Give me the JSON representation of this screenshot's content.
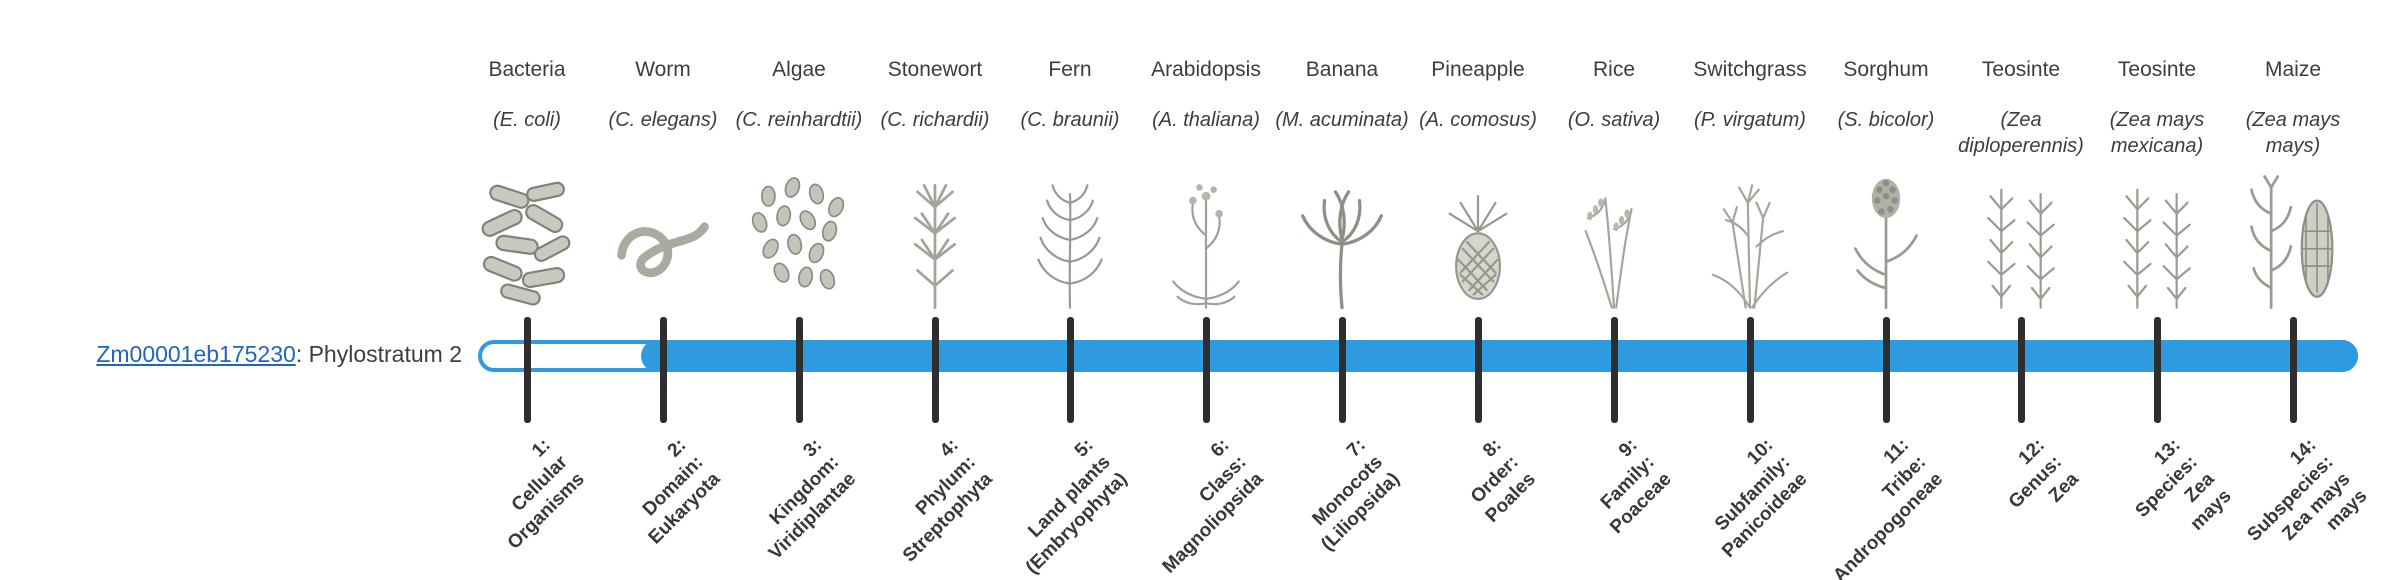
{
  "gene": {
    "id": "Zm00001eb175230",
    "label_suffix": ": Phylostratum 2",
    "phylostratum": 2,
    "link_color": "#2166b8"
  },
  "bar": {
    "color": "#2e9bdf",
    "fill_start_stratum": 2,
    "fill_end_stratum": 14
  },
  "tick_color": "#2e2e2e",
  "organisms": [
    {
      "name": "Bacteria",
      "sci": "(E. coli)",
      "icon": "bacteria-icon",
      "stratum": "1:\nCellular\nOrganisms"
    },
    {
      "name": "Worm",
      "sci": "(C. elegans)",
      "icon": "worm-icon",
      "stratum": "2:\nDomain:\nEukaryota"
    },
    {
      "name": "Algae",
      "sci": "(C. reinhardtii)",
      "icon": "algae-icon",
      "stratum": "3:\nKingdom:\nViridiplantae"
    },
    {
      "name": "Stonewort",
      "sci": "(C. richardii)",
      "icon": "stonewort-icon",
      "stratum": "4:\nPhylum:\nStreptophyta"
    },
    {
      "name": "Fern",
      "sci": "(C. braunii)",
      "icon": "fern-icon",
      "stratum": "5:\nLand plants\n(Embryophyta)"
    },
    {
      "name": "Arabidopsis",
      "sci": "(A. thaliana)",
      "icon": "arabidopsis-icon",
      "stratum": "6:\nClass:\nMagnoliopsida"
    },
    {
      "name": "Banana",
      "sci": "(M. acuminata)",
      "icon": "banana-icon",
      "stratum": "7:\nMonocots\n(Liliopsida)"
    },
    {
      "name": "Pineapple",
      "sci": "(A. comosus)",
      "icon": "pineapple-icon",
      "stratum": "8:\nOrder:\nPoales"
    },
    {
      "name": "Rice",
      "sci": "(O. sativa)",
      "icon": "rice-icon",
      "stratum": "9:\nFamily:\nPoaceae"
    },
    {
      "name": "Switchgrass",
      "sci": "(P. virgatum)",
      "icon": "switchgrass-icon",
      "stratum": "10:\nSubfamily:\nPanicoideae"
    },
    {
      "name": "Sorghum",
      "sci": "(S. bicolor)",
      "icon": "sorghum-icon",
      "stratum": "11:\nTribe:\nAndropogoneae"
    },
    {
      "name": "Teosinte",
      "sci": "(Zea diploperennis)",
      "icon": "teosinte-icon",
      "stratum": "12:\nGenus:\nZea"
    },
    {
      "name": "Teosinte",
      "sci": "(Zea mays mexicana)",
      "icon": "teosinte-icon",
      "stratum": "13:\nSpecies:\nZea\nmays"
    },
    {
      "name": "Maize",
      "sci": "(Zea mays mays)",
      "icon": "maize-icon",
      "stratum": "14:\nSubspecies:\nZea mays\nmays"
    }
  ]
}
